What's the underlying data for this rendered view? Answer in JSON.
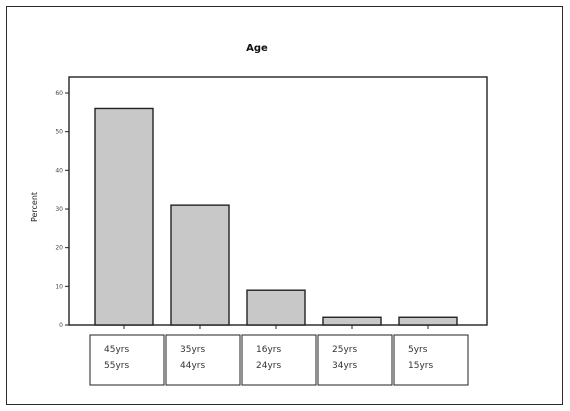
{
  "chart_data": {
    "type": "bar",
    "title": "Age",
    "ylabel": "Percent",
    "xlabel": "",
    "categories": [
      [
        "45yrs",
        "55yrs"
      ],
      [
        "35yrs",
        "44yrs"
      ],
      [
        "16yrs",
        "24yrs"
      ],
      [
        "25yrs",
        "34yrs"
      ],
      [
        "5yrs",
        "15yrs"
      ]
    ],
    "values": [
      56,
      31,
      9,
      2,
      2
    ],
    "ylim": [
      0,
      60
    ],
    "yticks": [
      0,
      10,
      20,
      30,
      40,
      50,
      60
    ],
    "grid": false,
    "legend": "none",
    "colors": {
      "bar_fill": "#c8c8c8",
      "bar_stroke": "#222222",
      "axis": "#222222"
    }
  }
}
